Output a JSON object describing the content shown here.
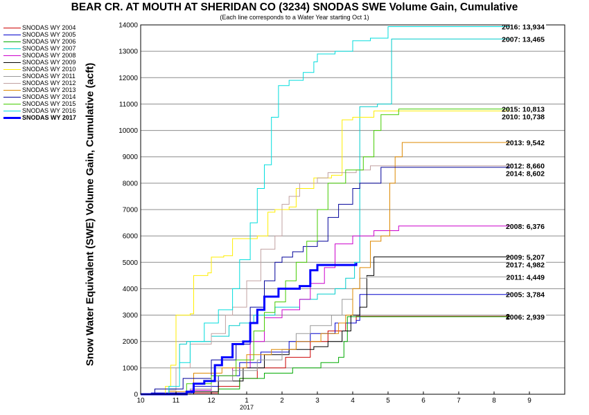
{
  "chart_data": {
    "type": "line",
    "title": "BEAR CR. AT MOUTH AT SHERIDAN CO (3234) SNODAS SWE Volume Gain, Cumulative",
    "subtitle": "(Each line corresponds to a Water Year starting Oct 1)",
    "ylabel": "Snow Water Equivalent (SWE) Volume Gain, Cumulative (acft)",
    "xlabel": "",
    "x_year_label": "2017",
    "xlim": [
      0,
      12
    ],
    "ylim": [
      0,
      14000
    ],
    "x_ticks": [
      {
        "v": 0,
        "label": "10"
      },
      {
        "v": 1,
        "label": "11"
      },
      {
        "v": 2,
        "label": "12"
      },
      {
        "v": 3,
        "label": "1"
      },
      {
        "v": 4,
        "label": "2"
      },
      {
        "v": 5,
        "label": "3"
      },
      {
        "v": 6,
        "label": "4"
      },
      {
        "v": 7,
        "label": "5"
      },
      {
        "v": 8,
        "label": "6"
      },
      {
        "v": 9,
        "label": "7"
      },
      {
        "v": 10,
        "label": "8"
      },
      {
        "v": 11,
        "label": "9"
      }
    ],
    "y_ticks": [
      0,
      1000,
      2000,
      3000,
      4000,
      5000,
      6000,
      7000,
      8000,
      9000,
      10000,
      11000,
      12000,
      13000,
      14000
    ],
    "grid": "horizontal",
    "legend_position": "left",
    "series": [
      {
        "name": "SNODAS WY 2004",
        "label": "2004: 2,958",
        "color": "#cc0000",
        "width": 1,
        "points": [
          [
            0,
            0
          ],
          [
            1.5,
            50
          ],
          [
            2.2,
            300
          ],
          [
            2.8,
            600
          ],
          [
            3.3,
            1000
          ],
          [
            4.1,
            1400
          ],
          [
            4.8,
            2000
          ],
          [
            5.3,
            2400
          ],
          [
            5.8,
            2700
          ],
          [
            6.1,
            2958
          ],
          [
            11,
            2958
          ]
        ]
      },
      {
        "name": "SNODAS WY 2005",
        "label": "2005: 3,784",
        "color": "#0000cc",
        "width": 1,
        "points": [
          [
            0,
            0
          ],
          [
            0.3,
            50
          ],
          [
            1.5,
            300
          ],
          [
            2.2,
            700
          ],
          [
            2.8,
            1200
          ],
          [
            3.4,
            1600
          ],
          [
            4.2,
            2000
          ],
          [
            4.8,
            2300
          ],
          [
            5.5,
            2700
          ],
          [
            6.1,
            2800
          ],
          [
            6.2,
            3784
          ],
          [
            11,
            3784
          ]
        ]
      },
      {
        "name": "SNODAS WY 2006",
        "label": "2006: 2,939",
        "color": "#00aa00",
        "width": 1,
        "points": [
          [
            0,
            0
          ],
          [
            2.2,
            200
          ],
          [
            2.8,
            600
          ],
          [
            3.5,
            800
          ],
          [
            4.3,
            1000
          ],
          [
            5.1,
            1200
          ],
          [
            5.6,
            1400
          ],
          [
            5.75,
            2000
          ],
          [
            5.85,
            2939
          ],
          [
            11,
            2939
          ]
        ]
      },
      {
        "name": "SNODAS WY 2007",
        "label": "2007: 13,465",
        "color": "#00cccc",
        "width": 1,
        "points": [
          [
            0,
            0
          ],
          [
            0.8,
            200
          ],
          [
            1.0,
            1000
          ],
          [
            1.1,
            1900
          ],
          [
            1.3,
            2000
          ],
          [
            2.0,
            2200
          ],
          [
            2.5,
            2600
          ],
          [
            2.8,
            2700
          ],
          [
            3.2,
            3000
          ],
          [
            3.8,
            3300
          ],
          [
            4.5,
            3600
          ],
          [
            5.0,
            3800
          ],
          [
            5.5,
            4000
          ],
          [
            5.8,
            4400
          ],
          [
            6.05,
            5000
          ],
          [
            6.2,
            10900
          ],
          [
            6.7,
            11000
          ],
          [
            7.1,
            13465
          ],
          [
            11,
            13465
          ]
        ]
      },
      {
        "name": "SNODAS WY 2008",
        "label": "2008: 6,376",
        "color": "#cc00cc",
        "width": 1,
        "points": [
          [
            0,
            0
          ],
          [
            1.4,
            150
          ],
          [
            2.0,
            500
          ],
          [
            2.6,
            1000
          ],
          [
            3.1,
            2000
          ],
          [
            3.5,
            2900
          ],
          [
            4.0,
            3200
          ],
          [
            4.5,
            3600
          ],
          [
            4.8,
            4200
          ],
          [
            5.2,
            4800
          ],
          [
            5.5,
            5700
          ],
          [
            6.0,
            6000
          ],
          [
            6.6,
            6200
          ],
          [
            7.3,
            6376
          ],
          [
            11,
            6376
          ]
        ]
      },
      {
        "name": "SNODAS WY 2009",
        "label": "2009: 5,207",
        "color": "#000000",
        "width": 1,
        "points": [
          [
            0,
            0
          ],
          [
            1.5,
            100
          ],
          [
            2.2,
            500
          ],
          [
            2.9,
            1000
          ],
          [
            3.5,
            1500
          ],
          [
            4.2,
            1700
          ],
          [
            4.9,
            1800
          ],
          [
            5.3,
            2000
          ],
          [
            5.7,
            2400
          ],
          [
            5.95,
            3000
          ],
          [
            6.2,
            3300
          ],
          [
            6.4,
            4500
          ],
          [
            6.6,
            5207
          ],
          [
            11,
            5207
          ]
        ]
      },
      {
        "name": "SNODAS WY 2010",
        "label": "2010: 10,738",
        "color": "#ffee00",
        "width": 1,
        "points": [
          [
            0,
            0
          ],
          [
            0.7,
            300
          ],
          [
            0.85,
            1100
          ],
          [
            1.0,
            3000
          ],
          [
            1.4,
            3050
          ],
          [
            1.5,
            4500
          ],
          [
            1.9,
            4600
          ],
          [
            2.0,
            5200
          ],
          [
            2.35,
            5250
          ],
          [
            2.6,
            5900
          ],
          [
            3.3,
            6000
          ],
          [
            3.6,
            6900
          ],
          [
            3.8,
            7000
          ],
          [
            4.2,
            7100
          ],
          [
            4.4,
            7800
          ],
          [
            4.9,
            8200
          ],
          [
            5.4,
            8300
          ],
          [
            5.7,
            10400
          ],
          [
            6.0,
            10500
          ],
          [
            6.6,
            10738
          ],
          [
            11,
            10738
          ]
        ]
      },
      {
        "name": "SNODAS WY 2011",
        "label": "2011: 4,449",
        "color": "#999999",
        "width": 1,
        "points": [
          [
            0,
            0
          ],
          [
            1.4,
            200
          ],
          [
            2.0,
            500
          ],
          [
            2.6,
            900
          ],
          [
            3.3,
            1300
          ],
          [
            4.0,
            1700
          ],
          [
            4.4,
            2300
          ],
          [
            4.8,
            2600
          ],
          [
            5.4,
            3000
          ],
          [
            5.7,
            3600
          ],
          [
            6.0,
            4000
          ],
          [
            6.2,
            4400
          ],
          [
            6.4,
            4449
          ],
          [
            11,
            4449
          ]
        ]
      },
      {
        "name": "SNODAS WY 2012",
        "label": "2012: 8,660",
        "color": "#c0a0a0",
        "width": 1,
        "points": [
          [
            0,
            0
          ],
          [
            0.8,
            150
          ],
          [
            1.0,
            1000
          ],
          [
            1.4,
            1900
          ],
          [
            2.0,
            2300
          ],
          [
            2.4,
            3000
          ],
          [
            2.6,
            3300
          ],
          [
            3.0,
            4300
          ],
          [
            3.4,
            5500
          ],
          [
            3.8,
            6000
          ],
          [
            4.0,
            7200
          ],
          [
            4.2,
            7500
          ],
          [
            4.5,
            8000
          ],
          [
            5.0,
            8200
          ],
          [
            5.3,
            8400
          ],
          [
            6.1,
            8500
          ],
          [
            6.5,
            8660
          ],
          [
            11,
            8660
          ]
        ]
      },
      {
        "name": "SNODAS WY 2013",
        "label": "2013: 9,542",
        "color": "#dd8800",
        "width": 1,
        "points": [
          [
            0,
            0
          ],
          [
            0.8,
            100
          ],
          [
            1.5,
            800
          ],
          [
            2.3,
            1000
          ],
          [
            3.0,
            1500
          ],
          [
            3.7,
            1700
          ],
          [
            4.4,
            2000
          ],
          [
            5.1,
            2300
          ],
          [
            5.6,
            2700
          ],
          [
            5.8,
            3000
          ],
          [
            6.0,
            4000
          ],
          [
            6.2,
            4800
          ],
          [
            6.5,
            5800
          ],
          [
            6.8,
            6000
          ],
          [
            7.05,
            8000
          ],
          [
            7.2,
            9000
          ],
          [
            7.4,
            9542
          ],
          [
            11,
            9542
          ]
        ]
      },
      {
        "name": "SNODAS WY 2014",
        "label": "2014: 8,602",
        "color": "#000099",
        "width": 1,
        "points": [
          [
            0,
            0
          ],
          [
            0.4,
            200
          ],
          [
            1.2,
            600
          ],
          [
            2.0,
            1300
          ],
          [
            2.7,
            1900
          ],
          [
            3.1,
            3300
          ],
          [
            3.5,
            4300
          ],
          [
            3.8,
            5000
          ],
          [
            4.0,
            5200
          ],
          [
            4.3,
            5400
          ],
          [
            4.6,
            5600
          ],
          [
            5.0,
            5800
          ],
          [
            5.3,
            6700
          ],
          [
            5.6,
            7200
          ],
          [
            6.0,
            7800
          ],
          [
            6.2,
            8000
          ],
          [
            6.5,
            8000
          ],
          [
            6.8,
            8602
          ],
          [
            11,
            8602
          ]
        ]
      },
      {
        "name": "SNODAS WY 2015",
        "label": "2015: 10,813",
        "color": "#44cc00",
        "width": 1,
        "points": [
          [
            0,
            0
          ],
          [
            1.3,
            400
          ],
          [
            2.0,
            700
          ],
          [
            2.7,
            1300
          ],
          [
            3.2,
            2400
          ],
          [
            3.5,
            3100
          ],
          [
            3.8,
            3500
          ],
          [
            4.1,
            4300
          ],
          [
            4.4,
            5000
          ],
          [
            4.7,
            5800
          ],
          [
            5.0,
            7000
          ],
          [
            5.3,
            8000
          ],
          [
            5.8,
            8500
          ],
          [
            6.3,
            9000
          ],
          [
            6.6,
            10000
          ],
          [
            6.8,
            10600
          ],
          [
            7.3,
            10813
          ],
          [
            11,
            10813
          ]
        ]
      },
      {
        "name": "SNODAS WY 2016",
        "label": "2016: 13,934",
        "color": "#00dddd",
        "width": 1,
        "points": [
          [
            0,
            0
          ],
          [
            0.8,
            300
          ],
          [
            1.1,
            1200
          ],
          [
            1.4,
            2000
          ],
          [
            1.8,
            2700
          ],
          [
            2.2,
            3200
          ],
          [
            2.6,
            4000
          ],
          [
            2.8,
            5100
          ],
          [
            3.1,
            6500
          ],
          [
            3.3,
            7800
          ],
          [
            3.5,
            8700
          ],
          [
            3.7,
            10500
          ],
          [
            3.9,
            11700
          ],
          [
            4.2,
            11900
          ],
          [
            4.6,
            12200
          ],
          [
            4.9,
            12600
          ],
          [
            5.0,
            12900
          ],
          [
            5.5,
            13000
          ],
          [
            6.0,
            13400
          ],
          [
            6.5,
            13500
          ],
          [
            7.0,
            13934
          ],
          [
            11,
            13934
          ]
        ]
      },
      {
        "name": "SNODAS WY 2017",
        "label": "2017: 4,982",
        "color": "#0000ff",
        "width": 3,
        "points": [
          [
            0,
            0
          ],
          [
            1.3,
            100
          ],
          [
            1.5,
            400
          ],
          [
            1.8,
            500
          ],
          [
            2.1,
            1100
          ],
          [
            2.3,
            1400
          ],
          [
            2.6,
            1900
          ],
          [
            2.9,
            2000
          ],
          [
            3.1,
            2700
          ],
          [
            3.3,
            3200
          ],
          [
            3.5,
            3700
          ],
          [
            3.9,
            4000
          ],
          [
            4.3,
            4000
          ],
          [
            4.5,
            4100
          ],
          [
            4.8,
            4700
          ],
          [
            5.0,
            4900
          ],
          [
            5.5,
            4900
          ],
          [
            6.1,
            4982
          ]
        ]
      }
    ]
  }
}
